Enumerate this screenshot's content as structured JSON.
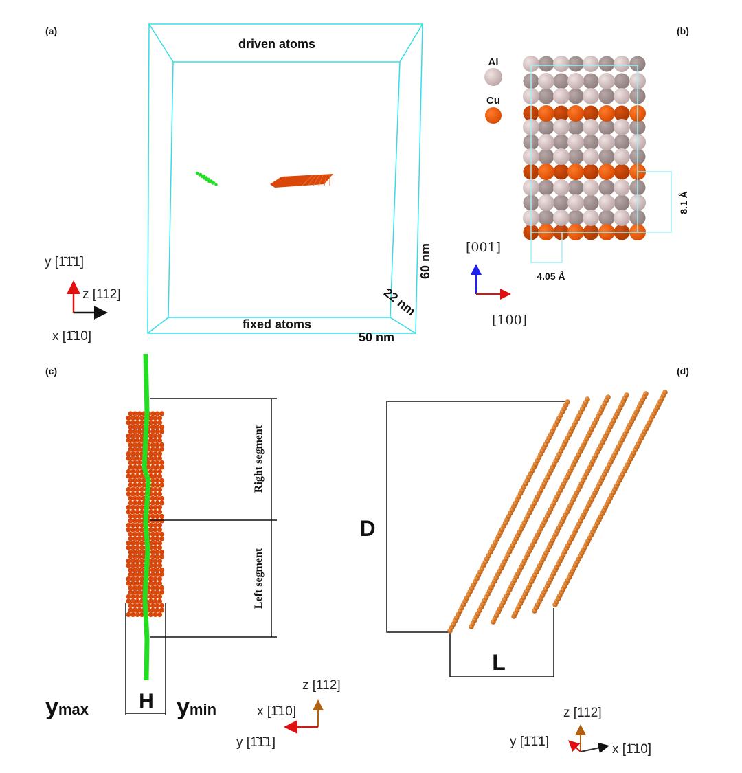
{
  "colors": {
    "box": "#33dde8",
    "cu": "#f25c0a",
    "al": "#d9c3c3",
    "green": "#22dd22",
    "rod": "#e0761c",
    "dark": "#111111"
  },
  "panel_a": {
    "label": "(a)",
    "top": "driven atoms",
    "bottom": "fixed atoms",
    "dim_height": "60 nm",
    "dim_depth": "22 nm",
    "dim_width": "50 nm",
    "axes": {
      "y": "y [1̄1̄1]",
      "z": "z [112]",
      "x": "x [1̄10]"
    }
  },
  "panel_b": {
    "label": "(b)",
    "legend": [
      {
        "name": "Al"
      },
      {
        "name": "Cu"
      }
    ],
    "spacing_vertical": "8.1 Å",
    "spacing_horizontal": "4.05 Å",
    "axes": {
      "up": "[001]",
      "right": "[100]"
    }
  },
  "panel_c": {
    "label": "(c)",
    "right_segment": "Right segment",
    "left_segment": "Left segment",
    "H": "H",
    "ymax": "y",
    "ymax_sub": "max",
    "ymin": "y",
    "ymin_sub": "min",
    "axes": {
      "z": "z [112]",
      "x": "x [1̄10]",
      "y": "y [1̄1̄1]"
    }
  },
  "panel_d": {
    "label": "(d)",
    "D": "D",
    "L": "L",
    "axes": {
      "z": "z [112]",
      "y": "y [1̄1̄1]",
      "x": "x [1̄10]"
    }
  }
}
